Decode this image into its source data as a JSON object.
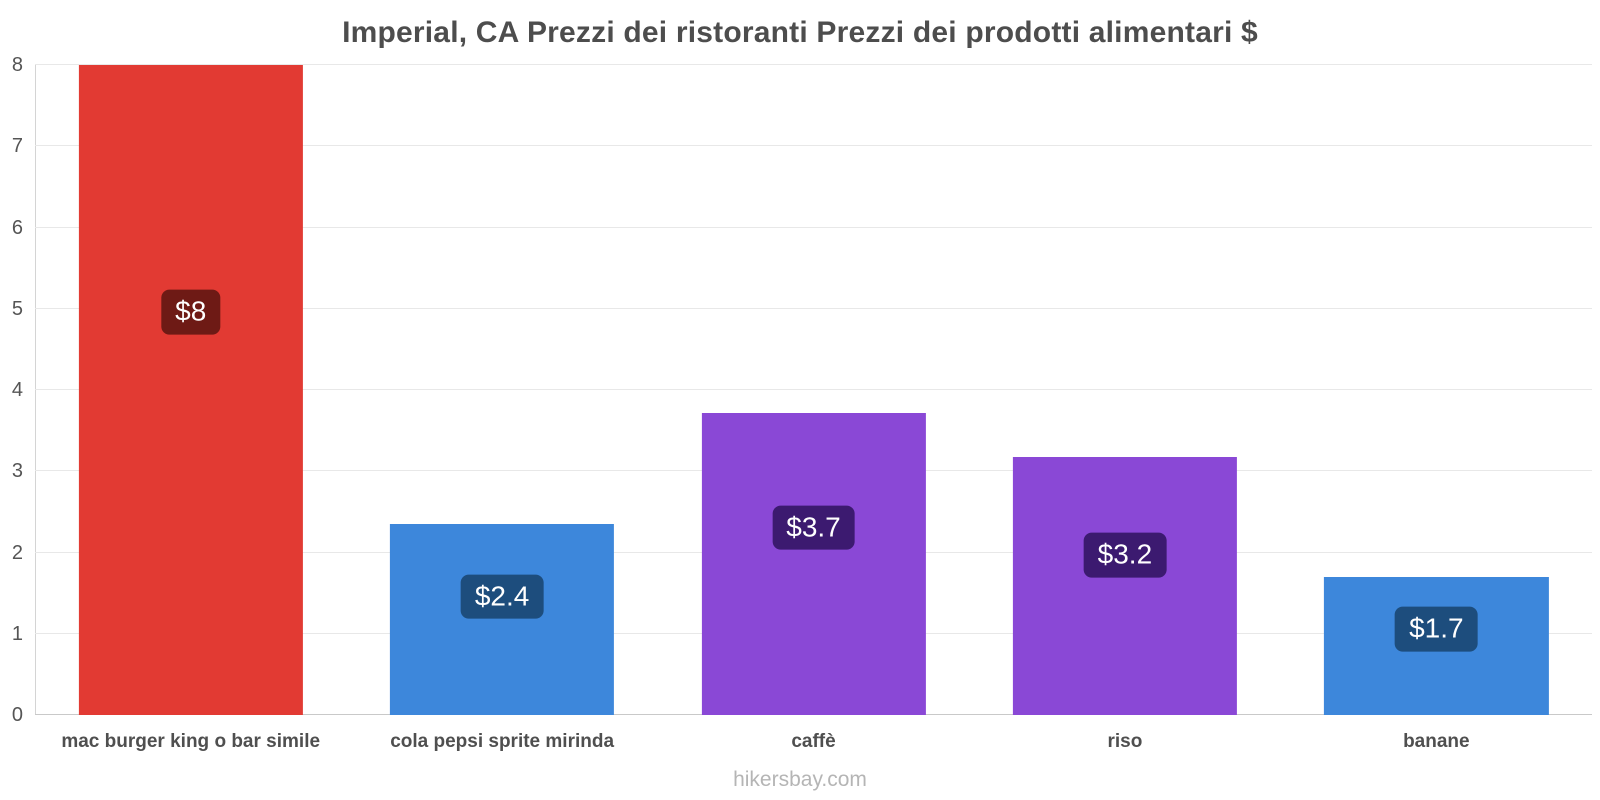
{
  "title": "Imperial, CA Prezzi dei ristoranti Prezzi dei prodotti alimentari $",
  "footer": "hikersbay.com",
  "chart_data": {
    "type": "bar",
    "title": "Imperial, CA Prezzi dei ristoranti Prezzi dei prodotti alimentari $",
    "xlabel": "",
    "ylabel": "",
    "ylim": [
      0,
      8
    ],
    "yticks": [
      0,
      1,
      2,
      3,
      4,
      5,
      6,
      7,
      8
    ],
    "grid": true,
    "legend": false,
    "categories": [
      "mac burger king o bar simile",
      "cola pepsi sprite mirinda",
      "caffè",
      "riso",
      "banane"
    ],
    "values": [
      8,
      2.35,
      3.72,
      3.18,
      1.7
    ],
    "data_labels": [
      "$8",
      "$2.4",
      "$3.7",
      "$3.2",
      "$1.7"
    ],
    "bar_colors": [
      "#e23a33",
      "#3d87db",
      "#8a48d6",
      "#8a48d6",
      "#3d87db"
    ],
    "badge_colors": [
      "#6e1a15",
      "#1d4d7d",
      "#3c1a70",
      "#3c1a70",
      "#1d4d7d"
    ],
    "colors_meaning": {
      "#e23a33": "restaurant-meal",
      "#3d87db": "drinks-fruit",
      "#8a48d6": "groceries"
    }
  }
}
